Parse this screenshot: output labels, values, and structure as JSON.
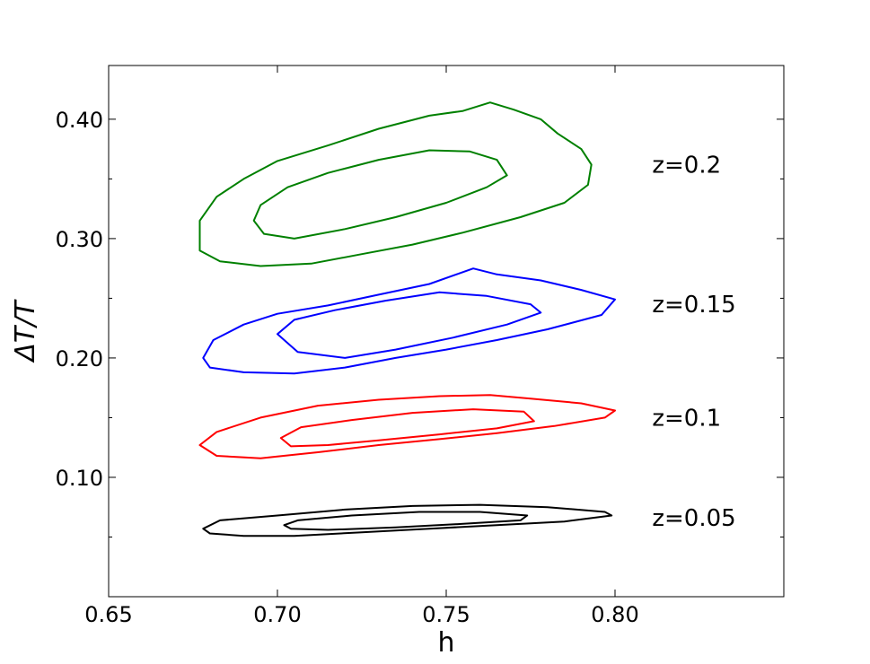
{
  "chart_data": {
    "type": "contour",
    "xlabel": "h",
    "ylabel": "ΔT/T",
    "xlim": [
      0.65,
      0.85
    ],
    "ylim": [
      0.0,
      0.445
    ],
    "x_ticks": [
      0.65,
      0.7,
      0.75,
      0.8
    ],
    "x_tick_labels": [
      "0.65",
      "0.70",
      "0.75",
      "0.80"
    ],
    "y_ticks": [
      0.1,
      0.2,
      0.3,
      0.4
    ],
    "y_tick_labels": [
      "0.10",
      "0.20",
      "0.30",
      "0.40"
    ],
    "y_minor_ticks": [
      0.05,
      0.15,
      0.25,
      0.35
    ],
    "grid": false,
    "series": [
      {
        "label": "z=0.2",
        "color": "#008000",
        "label_position": [
          0.811,
          0.362
        ],
        "contours": [
          [
            [
              0.677,
              0.29
            ],
            [
              0.677,
              0.315
            ],
            [
              0.682,
              0.335
            ],
            [
              0.69,
              0.35
            ],
            [
              0.7,
              0.365
            ],
            [
              0.715,
              0.378
            ],
            [
              0.73,
              0.392
            ],
            [
              0.745,
              0.403
            ],
            [
              0.755,
              0.407
            ],
            [
              0.763,
              0.414
            ],
            [
              0.77,
              0.408
            ],
            [
              0.778,
              0.4
            ],
            [
              0.783,
              0.388
            ],
            [
              0.79,
              0.375
            ],
            [
              0.793,
              0.362
            ],
            [
              0.792,
              0.345
            ],
            [
              0.785,
              0.33
            ],
            [
              0.772,
              0.318
            ],
            [
              0.755,
              0.305
            ],
            [
              0.74,
              0.295
            ],
            [
              0.725,
              0.287
            ],
            [
              0.71,
              0.279
            ],
            [
              0.695,
              0.277
            ],
            [
              0.683,
              0.281
            ],
            [
              0.677,
              0.29
            ]
          ],
          [
            [
              0.693,
              0.315
            ],
            [
              0.695,
              0.328
            ],
            [
              0.703,
              0.343
            ],
            [
              0.715,
              0.355
            ],
            [
              0.73,
              0.366
            ],
            [
              0.745,
              0.374
            ],
            [
              0.757,
              0.373
            ],
            [
              0.765,
              0.366
            ],
            [
              0.768,
              0.353
            ],
            [
              0.762,
              0.343
            ],
            [
              0.75,
              0.33
            ],
            [
              0.735,
              0.318
            ],
            [
              0.72,
              0.308
            ],
            [
              0.705,
              0.3
            ],
            [
              0.696,
              0.304
            ],
            [
              0.693,
              0.315
            ]
          ]
        ]
      },
      {
        "label": "z=0.15",
        "color": "#0000ff",
        "label_position": [
          0.811,
          0.245
        ],
        "contours": [
          [
            [
              0.678,
              0.2
            ],
            [
              0.681,
              0.215
            ],
            [
              0.69,
              0.228
            ],
            [
              0.7,
              0.237
            ],
            [
              0.715,
              0.244
            ],
            [
              0.73,
              0.253
            ],
            [
              0.745,
              0.262
            ],
            [
              0.758,
              0.275
            ],
            [
              0.765,
              0.27
            ],
            [
              0.778,
              0.265
            ],
            [
              0.79,
              0.257
            ],
            [
              0.8,
              0.249
            ],
            [
              0.796,
              0.236
            ],
            [
              0.78,
              0.224
            ],
            [
              0.765,
              0.215
            ],
            [
              0.75,
              0.207
            ],
            [
              0.735,
              0.2
            ],
            [
              0.72,
              0.192
            ],
            [
              0.705,
              0.187
            ],
            [
              0.69,
              0.188
            ],
            [
              0.68,
              0.192
            ],
            [
              0.678,
              0.2
            ]
          ],
          [
            [
              0.7,
              0.22
            ],
            [
              0.705,
              0.232
            ],
            [
              0.717,
              0.24
            ],
            [
              0.732,
              0.248
            ],
            [
              0.748,
              0.255
            ],
            [
              0.762,
              0.252
            ],
            [
              0.775,
              0.245
            ],
            [
              0.778,
              0.238
            ],
            [
              0.768,
              0.228
            ],
            [
              0.752,
              0.217
            ],
            [
              0.735,
              0.207
            ],
            [
              0.72,
              0.2
            ],
            [
              0.706,
              0.205
            ],
            [
              0.7,
              0.22
            ]
          ]
        ]
      },
      {
        "label": "z=0.1",
        "color": "#ff0000",
        "label_position": [
          0.811,
          0.15
        ],
        "contours": [
          [
            [
              0.677,
              0.127
            ],
            [
              0.682,
              0.138
            ],
            [
              0.695,
              0.15
            ],
            [
              0.712,
              0.16
            ],
            [
              0.73,
              0.165
            ],
            [
              0.748,
              0.168
            ],
            [
              0.763,
              0.169
            ],
            [
              0.775,
              0.166
            ],
            [
              0.79,
              0.162
            ],
            [
              0.8,
              0.156
            ],
            [
              0.797,
              0.15
            ],
            [
              0.782,
              0.143
            ],
            [
              0.765,
              0.137
            ],
            [
              0.748,
              0.132
            ],
            [
              0.73,
              0.127
            ],
            [
              0.712,
              0.121
            ],
            [
              0.695,
              0.116
            ],
            [
              0.682,
              0.118
            ],
            [
              0.677,
              0.127
            ]
          ],
          [
            [
              0.701,
              0.133
            ],
            [
              0.707,
              0.142
            ],
            [
              0.722,
              0.148
            ],
            [
              0.74,
              0.154
            ],
            [
              0.758,
              0.157
            ],
            [
              0.773,
              0.155
            ],
            [
              0.776,
              0.147
            ],
            [
              0.765,
              0.141
            ],
            [
              0.748,
              0.136
            ],
            [
              0.73,
              0.131
            ],
            [
              0.715,
              0.127
            ],
            [
              0.704,
              0.126
            ],
            [
              0.701,
              0.133
            ]
          ]
        ]
      },
      {
        "label": "z=0.05",
        "color": "#000000",
        "label_position": [
          0.811,
          0.066
        ],
        "contours": [
          [
            [
              0.678,
              0.057
            ],
            [
              0.683,
              0.064
            ],
            [
              0.7,
              0.068
            ],
            [
              0.72,
              0.073
            ],
            [
              0.74,
              0.076
            ],
            [
              0.76,
              0.077
            ],
            [
              0.78,
              0.075
            ],
            [
              0.797,
              0.071
            ],
            [
              0.799,
              0.068
            ],
            [
              0.785,
              0.063
            ],
            [
              0.765,
              0.06
            ],
            [
              0.745,
              0.057
            ],
            [
              0.725,
              0.054
            ],
            [
              0.705,
              0.051
            ],
            [
              0.69,
              0.051
            ],
            [
              0.68,
              0.053
            ],
            [
              0.678,
              0.057
            ]
          ],
          [
            [
              0.702,
              0.06
            ],
            [
              0.706,
              0.064
            ],
            [
              0.722,
              0.068
            ],
            [
              0.742,
              0.071
            ],
            [
              0.76,
              0.071
            ],
            [
              0.774,
              0.068
            ],
            [
              0.772,
              0.064
            ],
            [
              0.755,
              0.061
            ],
            [
              0.735,
              0.058
            ],
            [
              0.715,
              0.056
            ],
            [
              0.704,
              0.057
            ],
            [
              0.702,
              0.06
            ]
          ]
        ]
      }
    ]
  }
}
